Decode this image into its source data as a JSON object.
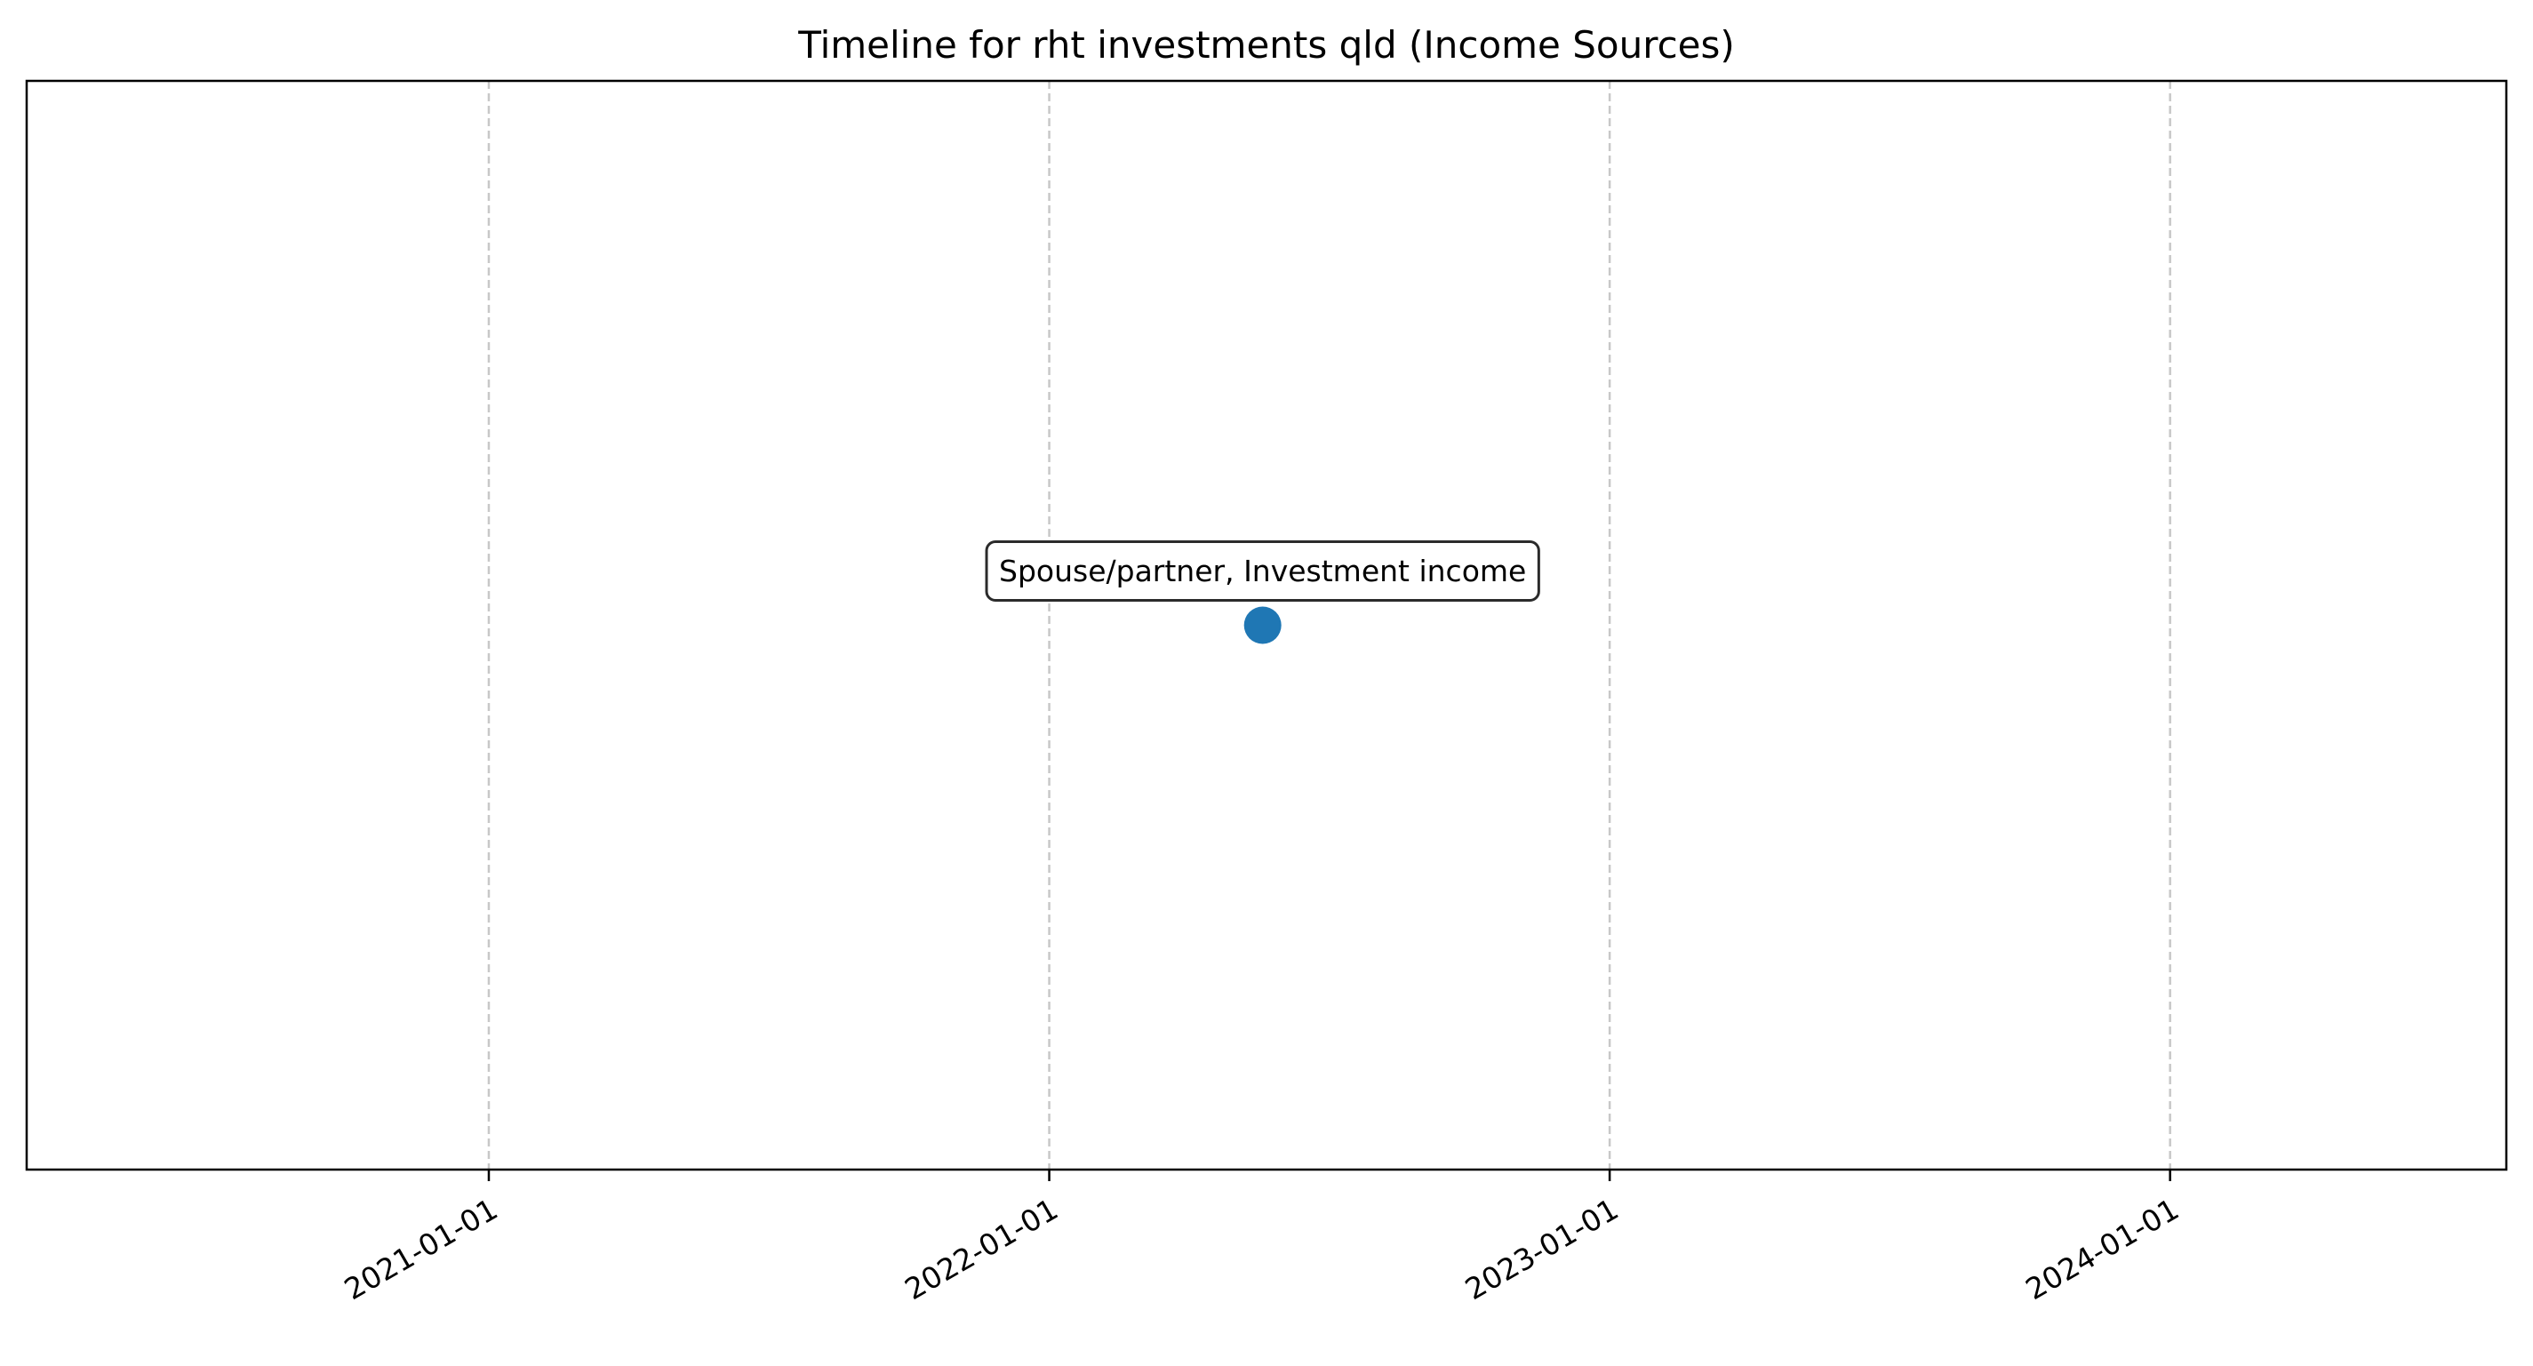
{
  "chart_data": {
    "type": "scatter",
    "title": "Timeline for rht investments qld (Income Sources)",
    "xlabel": "",
    "ylabel": "",
    "x_axis": {
      "type": "date",
      "range": [
        "2020-03-06",
        "2024-08-07"
      ],
      "ticks": [
        "2021-01-01",
        "2022-01-01",
        "2023-01-01",
        "2024-01-01"
      ],
      "tick_label_rotation": "30 degrees"
    },
    "y_axis": {
      "visible": false,
      "range": [
        0,
        2
      ]
    },
    "grid": {
      "x": true,
      "y": false,
      "style": "dashed",
      "color": "#c8c8c8"
    },
    "legend": "none",
    "series": [
      {
        "color": "#1f77b4",
        "points": [
          {
            "x": "2022-05-20",
            "y": 1,
            "label": "Spouse/partner, Investment income"
          }
        ]
      }
    ]
  }
}
